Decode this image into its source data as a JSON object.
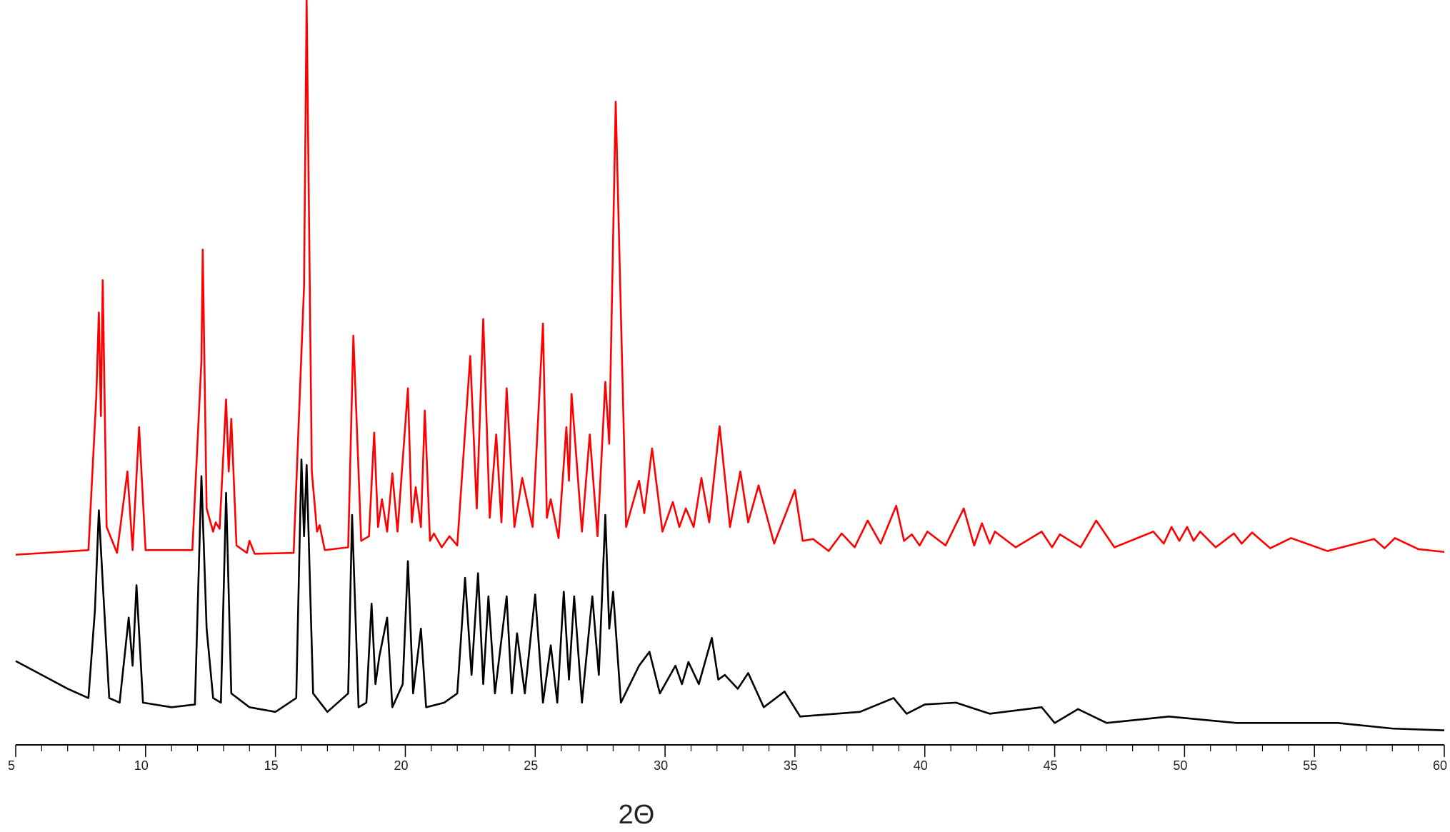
{
  "chart_data": {
    "type": "line",
    "xlabel": "2Θ",
    "xlim": [
      5,
      60
    ],
    "ylim": [
      0,
      810
    ],
    "xticks": [
      5,
      10,
      15,
      20,
      25,
      30,
      35,
      40,
      45,
      50,
      55,
      60
    ],
    "xminorticks": [
      6,
      7,
      8,
      9,
      11,
      12,
      13,
      14,
      16,
      17,
      18,
      19,
      21,
      22,
      23,
      24,
      26,
      27,
      28,
      29,
      31,
      32,
      33,
      34,
      36,
      37,
      38,
      39,
      41,
      42,
      43,
      44,
      46,
      47,
      48,
      49,
      51,
      52,
      53,
      54,
      56,
      57,
      58,
      59
    ],
    "series": [
      {
        "color": "#ff0000",
        "x": [
          5,
          7.8,
          8.1,
          8.2,
          8.28,
          8.35,
          8.5,
          8.9,
          9.3,
          9.5,
          9.75,
          10.0,
          11.8,
          12.15,
          12.2,
          12.35,
          12.6,
          12.7,
          12.85,
          13.1,
          13.2,
          13.3,
          13.5,
          13.9,
          14.0,
          14.2,
          15.7,
          16.1,
          16.2,
          16.4,
          16.6,
          16.7,
          16.9,
          17.8,
          18.0,
          18.3,
          18.6,
          18.8,
          18.95,
          19.1,
          19.3,
          19.5,
          19.7,
          20.1,
          20.25,
          20.4,
          20.6,
          20.75,
          20.95,
          21.1,
          21.4,
          21.7,
          22.0,
          22.5,
          22.75,
          23.0,
          23.25,
          23.5,
          23.7,
          23.9,
          24.2,
          24.5,
          24.9,
          25.3,
          25.45,
          25.6,
          25.9,
          26.2,
          26.3,
          26.4,
          26.8,
          27.1,
          27.4,
          27.7,
          27.85,
          28.1,
          28.5,
          29.0,
          29.2,
          29.5,
          29.9,
          30.3,
          30.55,
          30.8,
          31.1,
          31.4,
          31.7,
          32.1,
          32.5,
          32.9,
          33.2,
          33.6,
          34.2,
          35.0,
          35.3,
          35.7,
          36.3,
          36.8,
          37.3,
          37.8,
          38.3,
          38.9,
          39.2,
          39.5,
          39.8,
          40.1,
          40.8,
          41.5,
          41.9,
          42.2,
          42.5,
          42.7,
          43.5,
          44.5,
          44.9,
          45.2,
          46.0,
          46.6,
          47.3,
          48.8,
          49.2,
          49.5,
          49.8,
          50.1,
          50.35,
          50.6,
          51.2,
          51.9,
          52.2,
          52.6,
          53.3,
          54.1,
          55.5,
          57.3,
          57.7,
          58.1,
          59.0,
          60
        ],
        "values": [
          210,
          215,
          380,
          472,
          360,
          507,
          240,
          212,
          300,
          215,
          348,
          215,
          215,
          420,
          540,
          260,
          235,
          245,
          238,
          378,
          300,
          357,
          220,
          212,
          225,
          211,
          212,
          500,
          810,
          300,
          235,
          242,
          215,
          218,
          447,
          225,
          230,
          342,
          240,
          270,
          235,
          298,
          235,
          390,
          245,
          283,
          240,
          366,
          225,
          233,
          218,
          230,
          220,
          425,
          260,
          465,
          250,
          340,
          245,
          390,
          240,
          293,
          240,
          460,
          250,
          270,
          228,
          348,
          290,
          384,
          235,
          340,
          230,
          397,
          330,
          700,
          240,
          290,
          255,
          325,
          235,
          267,
          240,
          260,
          240,
          293,
          245,
          349,
          240,
          300,
          245,
          285,
          222,
          280,
          225,
          227,
          214,
          233,
          218,
          247,
          222,
          263,
          225,
          232,
          220,
          235,
          220,
          260,
          220,
          244,
          222,
          235,
          218,
          235,
          218,
          232,
          218,
          247,
          218,
          235,
          222,
          240,
          225,
          240,
          225,
          235,
          218,
          233,
          222,
          234,
          217,
          228,
          214,
          227,
          217,
          228,
          216,
          213
        ]
      },
      {
        "color": "#000000",
        "x": [
          5,
          6,
          7,
          7.8,
          8.05,
          8.2,
          8.35,
          8.6,
          9.0,
          9.35,
          9.5,
          9.65,
          9.9,
          11,
          11.9,
          12.15,
          12.35,
          12.6,
          12.9,
          13.1,
          13.3,
          14,
          15,
          15.8,
          16.0,
          16.1,
          16.2,
          16.45,
          17,
          17.8,
          17.95,
          18.2,
          18.5,
          18.7,
          18.85,
          19.0,
          19.3,
          19.5,
          19.9,
          20.1,
          20.3,
          20.6,
          20.8,
          21.5,
          22.0,
          22.3,
          22.55,
          22.8,
          23.0,
          23.2,
          23.45,
          23.9,
          24.1,
          24.3,
          24.6,
          25.0,
          25.3,
          25.6,
          25.85,
          26.1,
          26.3,
          26.5,
          26.8,
          27.2,
          27.45,
          27.7,
          27.85,
          28.0,
          28.3,
          29.0,
          29.4,
          29.8,
          30.4,
          30.65,
          30.9,
          31.3,
          31.8,
          32.05,
          32.3,
          32.8,
          33.2,
          33.8,
          34.6,
          35.2,
          37.5,
          38.8,
          39.3,
          40.0,
          41.2,
          42.5,
          44.5,
          45.0,
          45.9,
          47,
          49.4,
          52,
          55.9,
          58,
          60
        ],
        "values": [
          95,
          80,
          65,
          55,
          150,
          258,
          180,
          55,
          50,
          142,
          90,
          177,
          50,
          45,
          48,
          295,
          130,
          55,
          50,
          277,
          60,
          45,
          40,
          55,
          313,
          230,
          307,
          60,
          40,
          60,
          253,
          45,
          50,
          157,
          70,
          100,
          142,
          45,
          70,
          203,
          60,
          130,
          45,
          50,
          60,
          185,
          80,
          190,
          70,
          165,
          60,
          165,
          60,
          125,
          60,
          167,
          50,
          112,
          50,
          170,
          75,
          165,
          50,
          165,
          80,
          253,
          130,
          170,
          50,
          90,
          105,
          60,
          90,
          70,
          94,
          70,
          120,
          75,
          80,
          65,
          82,
          45,
          62,
          35,
          40,
          55,
          38,
          48,
          50,
          38,
          45,
          28,
          43,
          28,
          35,
          28,
          28,
          22,
          20
        ]
      }
    ]
  }
}
